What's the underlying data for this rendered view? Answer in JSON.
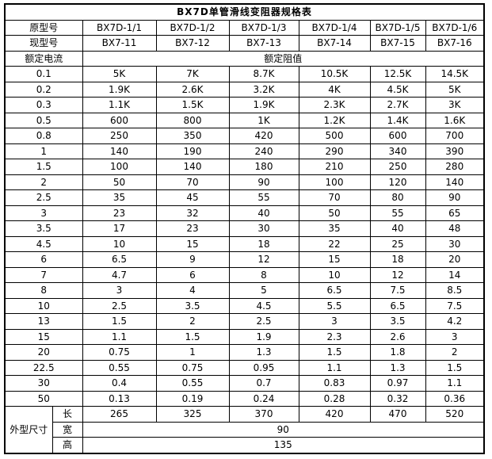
{
  "title": "BX7D单管滑线变阻器规格表",
  "colors": {
    "border": "#000000",
    "background": "#ffffff",
    "text": "#000000"
  },
  "header": {
    "original_model_label": "原型号",
    "original_models": [
      "BX7D-1/1",
      "BX7D-1/2",
      "BX7D-1/3",
      "BX7D-1/4",
      "BX7D-1/5",
      "BX7D-1/6"
    ],
    "current_model_label": "现型号",
    "current_models": [
      "BX7-11",
      "BX7-12",
      "BX7-13",
      "BX7-14",
      "BX7-15",
      "BX7-16"
    ],
    "rated_current_label": "额定电流",
    "rated_resistance_label": "额定阻值"
  },
  "rows": [
    {
      "current": "0.1",
      "values": [
        "5K",
        "7K",
        "8.7K",
        "10.5K",
        "12.5K",
        "14.5K"
      ]
    },
    {
      "current": "0.2",
      "values": [
        "1.9K",
        "2.6K",
        "3.2K",
        "4K",
        "4.5K",
        "5K"
      ]
    },
    {
      "current": "0.3",
      "values": [
        "1.1K",
        "1.5K",
        "1.9K",
        "2.3K",
        "2.7K",
        "3K"
      ]
    },
    {
      "current": "0.5",
      "values": [
        "600",
        "800",
        "1K",
        "1.2K",
        "1.4K",
        "1.6K"
      ]
    },
    {
      "current": "0.8",
      "values": [
        "250",
        "350",
        "420",
        "500",
        "600",
        "700"
      ]
    },
    {
      "current": "1",
      "values": [
        "140",
        "190",
        "240",
        "290",
        "340",
        "390"
      ]
    },
    {
      "current": "1.5",
      "values": [
        "100",
        "140",
        "180",
        "210",
        "250",
        "280"
      ]
    },
    {
      "current": "2",
      "values": [
        "50",
        "70",
        "90",
        "100",
        "120",
        "140"
      ]
    },
    {
      "current": "2.5",
      "values": [
        "35",
        "45",
        "55",
        "70",
        "80",
        "90"
      ]
    },
    {
      "current": "3",
      "values": [
        "23",
        "32",
        "40",
        "50",
        "55",
        "65"
      ]
    },
    {
      "current": "3.5",
      "values": [
        "17",
        "23",
        "30",
        "35",
        "40",
        "48"
      ]
    },
    {
      "current": "4.5",
      "values": [
        "10",
        "15",
        "18",
        "22",
        "25",
        "30"
      ]
    },
    {
      "current": "6",
      "values": [
        "6.5",
        "9",
        "12",
        "15",
        "18",
        "20"
      ]
    },
    {
      "current": "7",
      "values": [
        "4.7",
        "6",
        "8",
        "10",
        "12",
        "14"
      ]
    },
    {
      "current": "8",
      "values": [
        "3",
        "4",
        "5",
        "6.5",
        "7.5",
        "8.5"
      ]
    },
    {
      "current": "10",
      "values": [
        "2.5",
        "3.5",
        "4.5",
        "5.5",
        "6.5",
        "7.5"
      ]
    },
    {
      "current": "13",
      "values": [
        "1.5",
        "2",
        "2.5",
        "3",
        "3.5",
        "4.2"
      ]
    },
    {
      "current": "15",
      "values": [
        "1.1",
        "1.5",
        "1.9",
        "2.3",
        "2.6",
        "3"
      ]
    },
    {
      "current": "20",
      "values": [
        "0.75",
        "1",
        "1.3",
        "1.5",
        "1.8",
        "2"
      ]
    },
    {
      "current": "22.5",
      "values": [
        "0.55",
        "0.75",
        "0.95",
        "1.1",
        "1.3",
        "1.5"
      ]
    },
    {
      "current": "30",
      "values": [
        "0.4",
        "0.55",
        "0.7",
        "0.83",
        "0.97",
        "1.1"
      ]
    },
    {
      "current": "50",
      "values": [
        "0.13",
        "0.19",
        "0.24",
        "0.28",
        "0.32",
        "0.36"
      ]
    }
  ],
  "dimensions": {
    "label": "外型尺寸",
    "length_label": "长",
    "length_values": [
      "265",
      "325",
      "370",
      "420",
      "470",
      "520"
    ],
    "width_label": "宽",
    "width_value": "90",
    "height_label": "高",
    "height_value": "135"
  }
}
